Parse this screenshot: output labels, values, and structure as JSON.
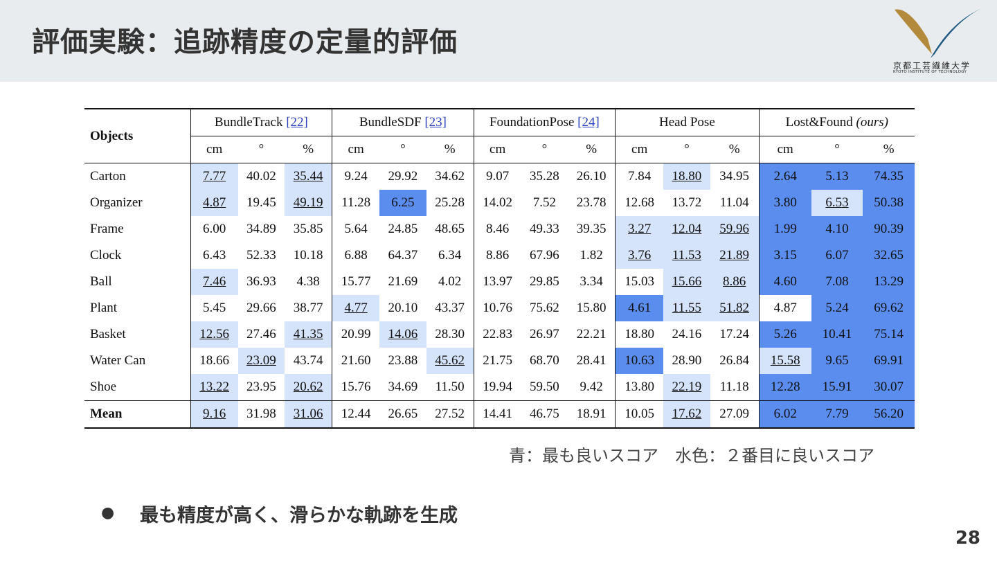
{
  "slide": {
    "title": "評価実験：追跡精度の定量的評価",
    "logo": {
      "name_jp": "京都工芸繊維大学",
      "name_en": "KYOTO INSTITUTE OF TECHNOLOGY"
    },
    "note": "青：最も良いスコア　水色：２番目に良いスコア",
    "bullet": "最も精度が高く、滑らかな軌跡を生成",
    "page_number": "28",
    "colors": {
      "best": "#5b8def",
      "second": "#d6e4fb",
      "header_bg": "#e8ecee"
    }
  },
  "table": {
    "objects_header": "Objects",
    "groups": [
      {
        "name": "BundleTrack",
        "ref": "[22]"
      },
      {
        "name": "BundleSDF",
        "ref": "[23]"
      },
      {
        "name": "FoundationPose",
        "ref": "[24]"
      },
      {
        "name": "Head Pose",
        "ref": ""
      },
      {
        "name": "Lost&Found",
        "ref": "",
        "suffix": "(ours)"
      }
    ],
    "units": [
      "cm",
      "°",
      "%"
    ],
    "rows": [
      {
        "name": "Carton",
        "cells": [
          {
            "v": "7.77",
            "s": 2,
            "u": 1
          },
          {
            "v": "40.02"
          },
          {
            "v": "35.44",
            "s": 2,
            "u": 1
          },
          {
            "v": "9.24"
          },
          {
            "v": "29.92"
          },
          {
            "v": "34.62"
          },
          {
            "v": "9.07"
          },
          {
            "v": "35.28"
          },
          {
            "v": "26.10"
          },
          {
            "v": "7.84"
          },
          {
            "v": "18.80",
            "s": 2,
            "u": 1
          },
          {
            "v": "34.95"
          },
          {
            "v": "2.64",
            "s": 1,
            "b": 1
          },
          {
            "v": "5.13",
            "s": 1,
            "b": 1
          },
          {
            "v": "74.35",
            "s": 1,
            "b": 1
          }
        ]
      },
      {
        "name": "Organizer",
        "cells": [
          {
            "v": "4.87",
            "s": 2,
            "u": 1
          },
          {
            "v": "19.45"
          },
          {
            "v": "49.19",
            "s": 2,
            "u": 1
          },
          {
            "v": "11.28"
          },
          {
            "v": "6.25",
            "s": 1,
            "b": 1
          },
          {
            "v": "25.28"
          },
          {
            "v": "14.02"
          },
          {
            "v": "7.52"
          },
          {
            "v": "23.78"
          },
          {
            "v": "12.68"
          },
          {
            "v": "13.72"
          },
          {
            "v": "11.04"
          },
          {
            "v": "3.80",
            "s": 1,
            "b": 1
          },
          {
            "v": "6.53",
            "s": 2,
            "u": 1
          },
          {
            "v": "50.38",
            "s": 1,
            "b": 1
          }
        ]
      },
      {
        "name": "Frame",
        "cells": [
          {
            "v": "6.00"
          },
          {
            "v": "34.89"
          },
          {
            "v": "35.85"
          },
          {
            "v": "5.64"
          },
          {
            "v": "24.85"
          },
          {
            "v": "48.65"
          },
          {
            "v": "8.46"
          },
          {
            "v": "49.33"
          },
          {
            "v": "39.35"
          },
          {
            "v": "3.27",
            "s": 2,
            "u": 1
          },
          {
            "v": "12.04",
            "s": 2,
            "u": 1
          },
          {
            "v": "59.96",
            "s": 2,
            "u": 1
          },
          {
            "v": "1.99",
            "s": 1,
            "b": 1
          },
          {
            "v": "4.10",
            "s": 1,
            "b": 1
          },
          {
            "v": "90.39",
            "s": 1,
            "b": 1
          }
        ]
      },
      {
        "name": "Clock",
        "cells": [
          {
            "v": "6.43"
          },
          {
            "v": "52.33"
          },
          {
            "v": "10.18"
          },
          {
            "v": "6.88"
          },
          {
            "v": "64.37"
          },
          {
            "v": "6.34"
          },
          {
            "v": "8.86"
          },
          {
            "v": "67.96"
          },
          {
            "v": "1.82"
          },
          {
            "v": "3.76",
            "s": 2,
            "u": 1
          },
          {
            "v": "11.53",
            "s": 2,
            "u": 1
          },
          {
            "v": "21.89",
            "s": 2,
            "u": 1
          },
          {
            "v": "3.15",
            "s": 1,
            "b": 1
          },
          {
            "v": "6.07",
            "s": 1,
            "b": 1
          },
          {
            "v": "32.65",
            "s": 1,
            "b": 1
          }
        ]
      },
      {
        "name": "Ball",
        "cells": [
          {
            "v": "7.46",
            "s": 2,
            "u": 1
          },
          {
            "v": "36.93"
          },
          {
            "v": "4.38"
          },
          {
            "v": "15.77"
          },
          {
            "v": "21.69"
          },
          {
            "v": "4.02"
          },
          {
            "v": "13.97"
          },
          {
            "v": "29.85"
          },
          {
            "v": "3.34"
          },
          {
            "v": "15.03"
          },
          {
            "v": "15.66",
            "s": 2,
            "u": 1
          },
          {
            "v": "8.86",
            "s": 2,
            "u": 1
          },
          {
            "v": "4.60",
            "s": 1,
            "b": 1
          },
          {
            "v": "7.08",
            "s": 1,
            "b": 1
          },
          {
            "v": "13.29",
            "s": 1,
            "b": 1
          }
        ]
      },
      {
        "name": "Plant",
        "cells": [
          {
            "v": "5.45"
          },
          {
            "v": "29.66"
          },
          {
            "v": "38.77"
          },
          {
            "v": "4.77",
            "s": 2,
            "u": 1
          },
          {
            "v": "20.10"
          },
          {
            "v": "43.37"
          },
          {
            "v": "10.76"
          },
          {
            "v": "75.62"
          },
          {
            "v": "15.80"
          },
          {
            "v": "4.61",
            "s": 1,
            "b": 1
          },
          {
            "v": "11.55",
            "s": 2,
            "u": 1
          },
          {
            "v": "51.82",
            "s": 2,
            "u": 1
          },
          {
            "v": "4.87"
          },
          {
            "v": "5.24",
            "s": 1,
            "b": 1
          },
          {
            "v": "69.62",
            "s": 1,
            "b": 1
          }
        ]
      },
      {
        "name": "Basket",
        "cells": [
          {
            "v": "12.56",
            "s": 2,
            "u": 1
          },
          {
            "v": "27.46"
          },
          {
            "v": "41.35",
            "s": 2,
            "u": 1
          },
          {
            "v": "20.99"
          },
          {
            "v": "14.06",
            "s": 2,
            "u": 1
          },
          {
            "v": "28.30"
          },
          {
            "v": "22.83"
          },
          {
            "v": "26.97"
          },
          {
            "v": "22.21"
          },
          {
            "v": "18.80"
          },
          {
            "v": "24.16"
          },
          {
            "v": "17.24"
          },
          {
            "v": "5.26",
            "s": 1,
            "b": 1
          },
          {
            "v": "10.41",
            "s": 1,
            "b": 1
          },
          {
            "v": "75.14",
            "s": 1,
            "b": 1
          }
        ]
      },
      {
        "name": "Water Can",
        "cells": [
          {
            "v": "18.66"
          },
          {
            "v": "23.09",
            "s": 2,
            "u": 1
          },
          {
            "v": "43.74"
          },
          {
            "v": "21.60"
          },
          {
            "v": "23.88"
          },
          {
            "v": "45.62",
            "s": 2,
            "u": 1
          },
          {
            "v": "21.75"
          },
          {
            "v": "68.70"
          },
          {
            "v": "28.41"
          },
          {
            "v": "10.63",
            "s": 1,
            "b": 1
          },
          {
            "v": "28.90"
          },
          {
            "v": "26.84"
          },
          {
            "v": "15.58",
            "s": 2,
            "u": 1
          },
          {
            "v": "9.65",
            "s": 1,
            "b": 1
          },
          {
            "v": "69.91",
            "s": 1,
            "b": 1
          }
        ]
      },
      {
        "name": "Shoe",
        "cells": [
          {
            "v": "13.22",
            "s": 2,
            "u": 1
          },
          {
            "v": "23.95"
          },
          {
            "v": "20.62",
            "s": 2,
            "u": 1
          },
          {
            "v": "15.76"
          },
          {
            "v": "34.69"
          },
          {
            "v": "11.50"
          },
          {
            "v": "19.94"
          },
          {
            "v": "59.50"
          },
          {
            "v": "9.42"
          },
          {
            "v": "13.80"
          },
          {
            "v": "22.19",
            "s": 2,
            "u": 1
          },
          {
            "v": "11.18"
          },
          {
            "v": "12.28",
            "s": 1,
            "b": 1
          },
          {
            "v": "15.91",
            "s": 1,
            "b": 1
          },
          {
            "v": "30.07",
            "s": 1,
            "b": 1
          }
        ]
      }
    ],
    "mean": {
      "name": "Mean",
      "cells": [
        {
          "v": "9.16",
          "s": 2,
          "u": 1
        },
        {
          "v": "31.98"
        },
        {
          "v": "31.06",
          "s": 2,
          "u": 1
        },
        {
          "v": "12.44"
        },
        {
          "v": "26.65"
        },
        {
          "v": "27.52"
        },
        {
          "v": "14.41"
        },
        {
          "v": "46.75"
        },
        {
          "v": "18.91"
        },
        {
          "v": "10.05"
        },
        {
          "v": "17.62",
          "s": 2,
          "u": 1
        },
        {
          "v": "27.09"
        },
        {
          "v": "6.02",
          "s": 1,
          "b": 1
        },
        {
          "v": "7.79",
          "s": 1,
          "b": 1
        },
        {
          "v": "56.20",
          "s": 1,
          "b": 1
        }
      ]
    }
  }
}
